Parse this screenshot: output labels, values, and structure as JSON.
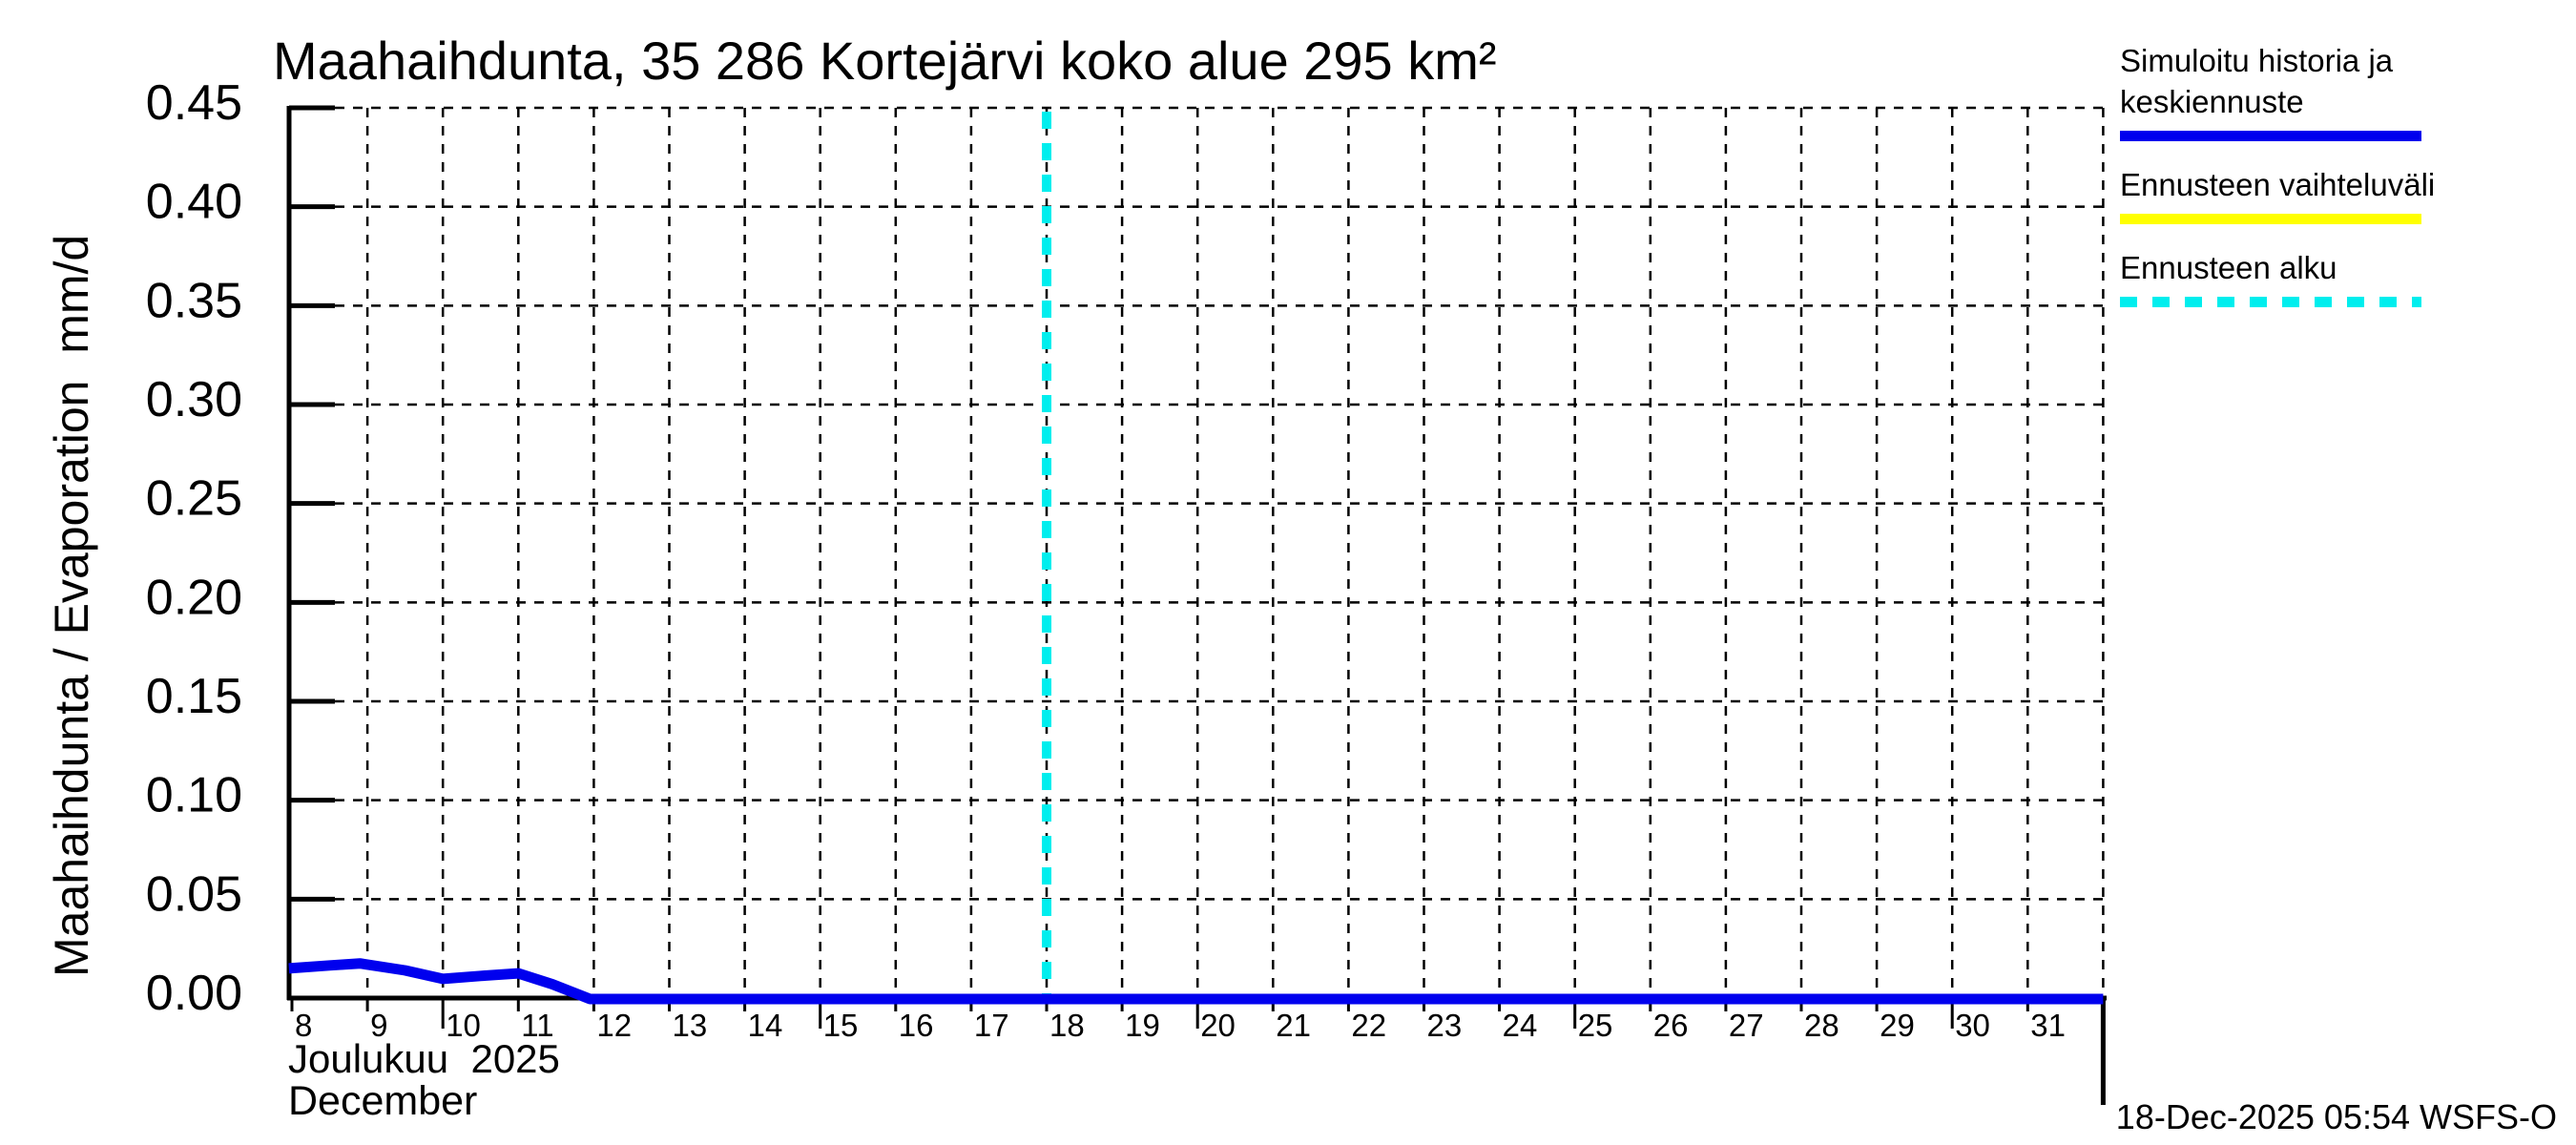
{
  "title": "Maahaihdunta, 35 286 Kortejärvi koko alue 295 km²",
  "y_axis_label": "Maahaihdunta / Evaporation  mm/d",
  "x_axis_label_fi": "Joulukuu  2025",
  "x_axis_label_en": "December",
  "timestamp": "18-Dec-2025 05:54 WSFS-O",
  "legend": {
    "items": [
      {
        "label_line1": "Simuloitu historia ja",
        "label_line2": "keskiennuste",
        "color": "#0000ee",
        "style": "solid"
      },
      {
        "label_line1": "Ennusteen vaihteluväli",
        "label_line2": "",
        "color": "#ffff00",
        "style": "solid"
      },
      {
        "label_line1": "Ennusteen alku",
        "label_line2": "",
        "color": "#00eeee",
        "style": "dashed"
      }
    ]
  },
  "colors": {
    "history_line": "#0000ee",
    "range_band": "#ffff00",
    "forecast_start_line": "#00eeee",
    "grid": "#000000",
    "text": "#000000",
    "background": "#ffffff"
  },
  "chart_data": {
    "type": "line",
    "title": "Maahaihdunta, 35 286 Kortejärvi koko alue 295 km²",
    "xlabel": "Joulukuu 2025 / December",
    "ylabel": "Maahaihdunta / Evaporation mm/d",
    "unit": "mm/d",
    "ylim": [
      0,
      0.45
    ],
    "y_ticks": [
      0.0,
      0.05,
      0.1,
      0.15,
      0.2,
      0.25,
      0.3,
      0.35,
      0.4,
      0.45
    ],
    "x_day_ticks": [
      8,
      9,
      10,
      11,
      12,
      13,
      14,
      15,
      16,
      17,
      18,
      19,
      20,
      21,
      22,
      23,
      24,
      25,
      26,
      27,
      28,
      29,
      30,
      31
    ],
    "x_range_days": [
      7.96,
      32.0
    ],
    "grid": true,
    "legend_position": "top-right",
    "forecast_start_day": 18,
    "series": [
      {
        "name": "Simuloitu historia ja keskiennuste",
        "color": "#0000ee",
        "points": [
          [
            7.96,
            0.015
          ],
          [
            8.5,
            0.0165
          ],
          [
            8.9,
            0.0175
          ],
          [
            9.5,
            0.014
          ],
          [
            10.0,
            0.0097
          ],
          [
            10.5,
            0.0112
          ],
          [
            11.0,
            0.0125
          ],
          [
            11.45,
            0.007
          ],
          [
            11.95,
            0.0
          ],
          [
            14.0,
            0.0
          ],
          [
            18.0,
            0.0
          ],
          [
            24.0,
            0.0
          ],
          [
            31.0,
            0.0
          ],
          [
            32.0,
            0.0
          ]
        ]
      }
    ]
  }
}
